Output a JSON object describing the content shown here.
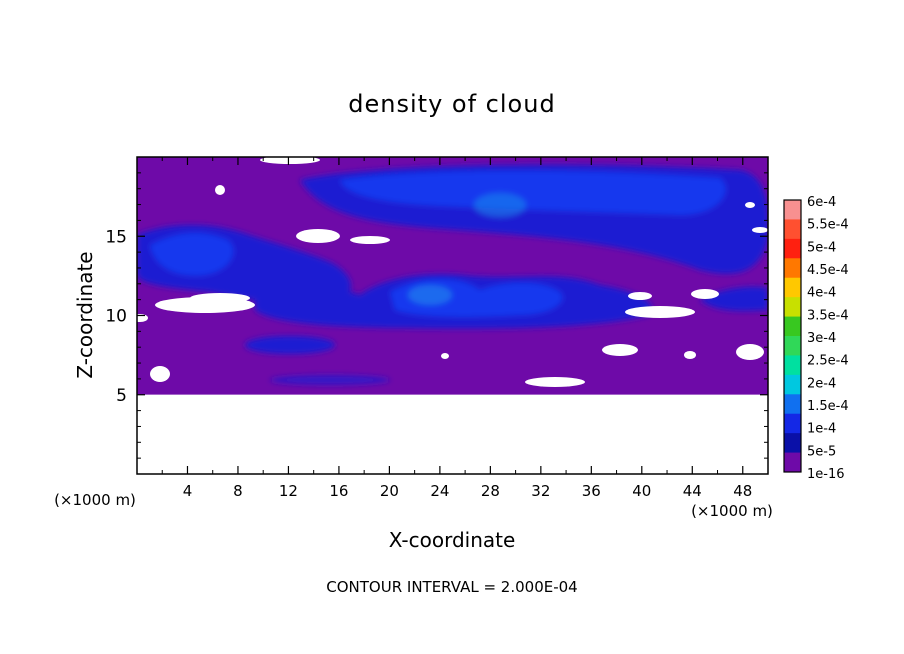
{
  "chart_data": {
    "type": "heatmap",
    "title": "density of cloud",
    "xlabel": "X-coordinate",
    "ylabel": "Z-coordinate",
    "x_unit": "(×1000 m)",
    "y_unit": "(×1000 m)",
    "xlim": [
      0,
      50
    ],
    "ylim": [
      0,
      20
    ],
    "x_ticks": [
      4,
      8,
      12,
      16,
      20,
      24,
      28,
      32,
      36,
      40,
      44,
      48
    ],
    "y_ticks": [
      5,
      10,
      15
    ],
    "note": "CONTOUR INTERVAL = 2.000E-04",
    "colorbar": {
      "labels": [
        "6e-4",
        "5.5e-4",
        "5e-4",
        "4.5e-4",
        "4e-4",
        "3.5e-4",
        "3e-4",
        "2.5e-4",
        "2e-4",
        "1.5e-4",
        "1e-4",
        "5e-5",
        "1e-16"
      ],
      "colors": [
        "#f89090",
        "#ff5030",
        "#ff2010",
        "#ff7800",
        "#ffc800",
        "#c8e000",
        "#38c820",
        "#30d858",
        "#00e0a0",
        "#00c8e0",
        "#1070f0",
        "#1428e6",
        "#0a10a8",
        "#6e0aa8"
      ]
    },
    "field_colors": {
      "background": "#6e0aa8",
      "low": "#1e1ed2",
      "mid": "#1838ee",
      "high": "#1c8cee",
      "empty": "#ffffff"
    }
  }
}
